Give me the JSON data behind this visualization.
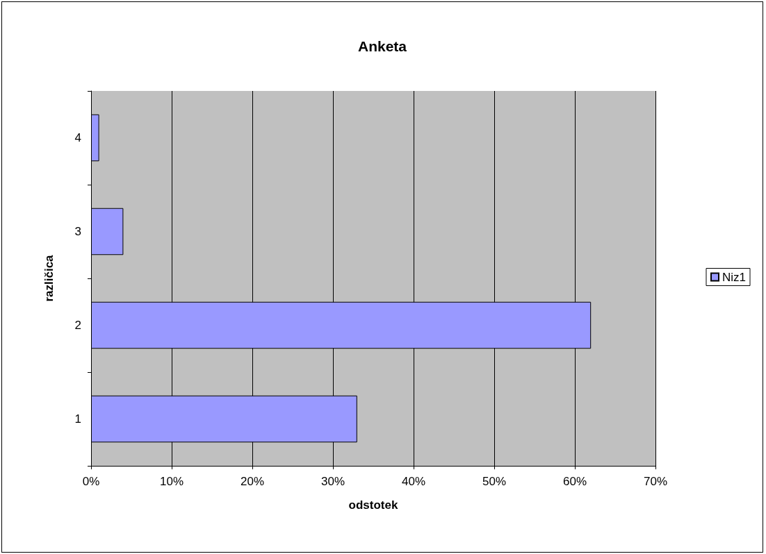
{
  "chart_data": {
    "type": "bar",
    "orientation": "horizontal",
    "title": "Anketa",
    "xlabel": "odstotek",
    "ylabel": "različica",
    "categories": [
      "4",
      "3",
      "2",
      "1"
    ],
    "series": [
      {
        "name": "Niz1",
        "color": "#9999ff",
        "values": [
          1,
          4,
          62,
          33
        ]
      }
    ],
    "xlim": [
      0,
      70
    ],
    "xticks": [
      {
        "value": 0,
        "label": "0%"
      },
      {
        "value": 10,
        "label": "10%"
      },
      {
        "value": 20,
        "label": "20%"
      },
      {
        "value": 30,
        "label": "30%"
      },
      {
        "value": 40,
        "label": "40%"
      },
      {
        "value": 50,
        "label": "50%"
      },
      {
        "value": 60,
        "label": "60%"
      },
      {
        "value": 70,
        "label": "70%"
      }
    ],
    "grid": "x",
    "legend": "right"
  }
}
